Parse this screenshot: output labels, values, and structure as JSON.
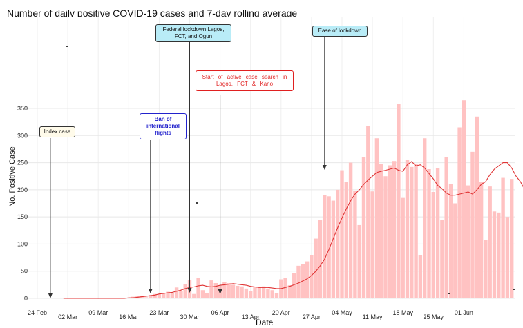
{
  "chart_data": {
    "type": "bar",
    "title": "Number of daily positive COVID-19 cases and 7-day rolling average",
    "xlabel": "Date",
    "ylabel": "No. Positive Case",
    "ylim": [
      0,
      375
    ],
    "yticks": [
      0,
      50,
      100,
      150,
      200,
      250,
      300,
      350
    ],
    "xtick_labels": [
      "24 Feb",
      "02 Mar",
      "09 Mar",
      "16 Mar",
      "23 Mar",
      "30 Mar",
      "06 Apr",
      "13 Apr",
      "20 Apr",
      "27 Apr",
      "04 May",
      "11 May",
      "18 May",
      "25 May",
      "01 Jun"
    ],
    "bar_color": "#ffc2c2",
    "line_color": "#e03434",
    "grid": true,
    "series": [
      {
        "type": "bar",
        "start_date": "2020-02-27",
        "values": [
          1,
          0,
          0,
          0,
          0,
          0,
          0,
          0,
          0,
          0,
          0,
          0,
          0,
          0,
          0,
          0,
          0,
          0,
          0,
          3,
          5,
          4,
          2,
          6,
          8,
          8,
          10,
          12,
          10,
          20,
          14,
          26,
          34,
          8,
          37,
          15,
          10,
          33,
          28,
          24,
          30,
          28,
          25,
          23,
          22,
          18,
          14,
          21,
          20,
          22,
          18,
          15,
          10,
          35,
          38,
          24,
          46,
          60,
          63,
          68,
          80,
          110,
          145,
          190,
          188,
          180,
          200,
          236,
          215,
          250,
          198,
          135,
          260,
          318,
          197,
          295,
          248,
          225,
          245,
          253,
          358,
          185,
          255,
          242,
          248,
          80,
          295,
          238,
          196,
          240,
          145,
          260,
          210,
          175,
          315,
          365,
          208,
          270,
          335,
          215,
          108,
          206,
          160,
          158,
          222,
          150,
          220
        ]
      },
      {
        "type": "line",
        "name": "",
        "start_date": "2020-03-01",
        "values": [
          0,
          0,
          0,
          0,
          0,
          0,
          0,
          0,
          0,
          0,
          0,
          0,
          0,
          0,
          0,
          1,
          1,
          2,
          3,
          4,
          5,
          6,
          8,
          9,
          10,
          11,
          13,
          15,
          18,
          20,
          21,
          23,
          24,
          22,
          21,
          22,
          24,
          25,
          26,
          27,
          26,
          25,
          24,
          22,
          21,
          20,
          20,
          20,
          19,
          18,
          18,
          20,
          22,
          25,
          28,
          32,
          36,
          42,
          50,
          60,
          72,
          90,
          110,
          130,
          148,
          165,
          180,
          192,
          200,
          210,
          218,
          225,
          232,
          234,
          236,
          238,
          240,
          236,
          234,
          246,
          252,
          244,
          246,
          240,
          230,
          220,
          208,
          202,
          194,
          190,
          190,
          192,
          194,
          196,
          192,
          200,
          210,
          215,
          228,
          238,
          244,
          250,
          250,
          240,
          225,
          215,
          200,
          188,
          175,
          172,
          160
        ]
      }
    ],
    "annotations": [
      {
        "text": "Index case",
        "date": "2020-02-27",
        "box_bg": "#fffbea",
        "box_border": "#333333",
        "text_color": "#111111"
      },
      {
        "text": "Ban of international flights",
        "date": "2020-03-21",
        "box_bg": "#ffffff",
        "box_border": "#2222cc",
        "text_color": "#2222cc"
      },
      {
        "text": "Federal lockdown Lagos, FCT, and Ogun",
        "date": "2020-03-30",
        "box_bg": "#b9ecf7",
        "box_border": "#333333",
        "text_color": "#111111"
      },
      {
        "text": "Start of active case search in Lagos, FCT & Kano",
        "date": "2020-04-06",
        "box_bg": "#ffffff",
        "box_border": "#e02020",
        "text_color": "#e02020"
      },
      {
        "text": "Ease of lockdown",
        "date": "2020-04-30",
        "box_bg": "#b9ecf7",
        "box_border": "#333333",
        "text_color": "#111111"
      }
    ]
  }
}
